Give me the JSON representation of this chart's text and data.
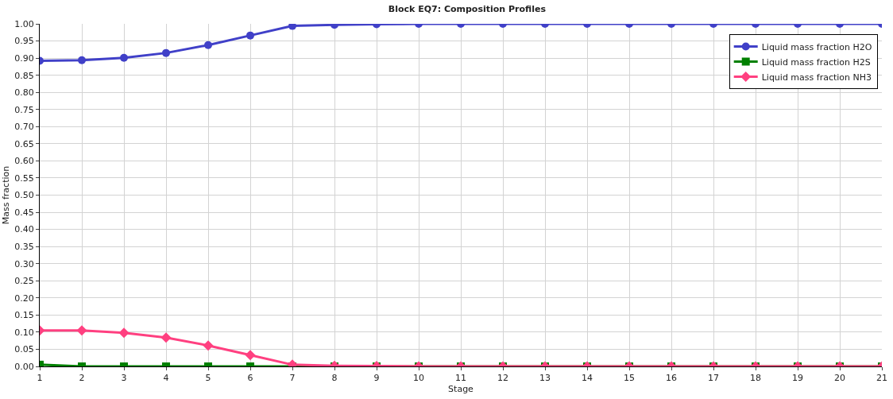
{
  "chart_data": {
    "type": "line",
    "title": "Block EQ7: Composition Profiles",
    "xlabel": "Stage",
    "ylabel": "Mass fraction",
    "x": [
      1,
      2,
      3,
      4,
      5,
      6,
      7,
      8,
      9,
      10,
      11,
      12,
      13,
      14,
      15,
      16,
      17,
      18,
      19,
      20,
      21
    ],
    "series": [
      {
        "name": "Liquid mass fraction H2O",
        "color": "#4040c8",
        "marker": "circle",
        "values": [
          0.892,
          0.894,
          0.901,
          0.915,
          0.938,
          0.966,
          0.994,
          0.997,
          0.999,
          1.0,
          1.0,
          1.0,
          1.0,
          1.0,
          1.0,
          1.0,
          1.0,
          1.0,
          1.0,
          1.0,
          1.0
        ]
      },
      {
        "name": "Liquid mass fraction H2S",
        "color": "#008000",
        "marker": "square",
        "values": [
          0.005,
          0.0,
          0.0,
          0.0,
          0.0,
          0.0,
          0.0,
          0.0,
          0.0,
          0.0,
          0.0,
          0.0,
          0.0,
          0.0,
          0.0,
          0.0,
          0.0,
          0.0,
          0.0,
          0.0,
          0.0
        ]
      },
      {
        "name": "Liquid mass fraction NH3",
        "color": "#ff4080",
        "marker": "diamond",
        "values": [
          0.105,
          0.105,
          0.098,
          0.084,
          0.061,
          0.033,
          0.005,
          0.002,
          0.001,
          0.0,
          0.0,
          0.0,
          0.0,
          0.0,
          0.0,
          0.0,
          0.0,
          0.0,
          0.0,
          0.0,
          0.0
        ]
      }
    ],
    "xlim": [
      1,
      21
    ],
    "xticks": [
      1,
      2,
      3,
      4,
      5,
      6,
      7,
      8,
      9,
      10,
      11,
      12,
      13,
      14,
      15,
      16,
      17,
      18,
      19,
      20,
      21
    ],
    "ylim": [
      0,
      1
    ],
    "yticks": [
      {
        "value": 0,
        "label": "0.00"
      },
      {
        "value": 0.05,
        "label": "0.05"
      },
      {
        "value": 0.1,
        "label": "0.10"
      },
      {
        "value": 0.15,
        "label": "0.15"
      },
      {
        "value": 0.2,
        "label": "0.20"
      },
      {
        "value": 0.25,
        "label": "0.25"
      },
      {
        "value": 0.3,
        "label": "0.30"
      },
      {
        "value": 0.35,
        "label": "0.35"
      },
      {
        "value": 0.4,
        "label": "0.40"
      },
      {
        "value": 0.45,
        "label": "0.45"
      },
      {
        "value": 0.5,
        "label": "0.50"
      },
      {
        "value": 0.55,
        "label": "0.55"
      },
      {
        "value": 0.6,
        "label": "0.60"
      },
      {
        "value": 0.65,
        "label": "0.65"
      },
      {
        "value": 0.7,
        "label": "0.70"
      },
      {
        "value": 0.75,
        "label": "0.75"
      },
      {
        "value": 0.8,
        "label": "0.80"
      },
      {
        "value": 0.85,
        "label": "0.85"
      },
      {
        "value": 0.9,
        "label": "0.90"
      },
      {
        "value": 0.95,
        "label": "0.95"
      },
      {
        "value": 1,
        "label": "1.00"
      }
    ],
    "grid": true,
    "legend": "top right",
    "line_style": "solid"
  }
}
